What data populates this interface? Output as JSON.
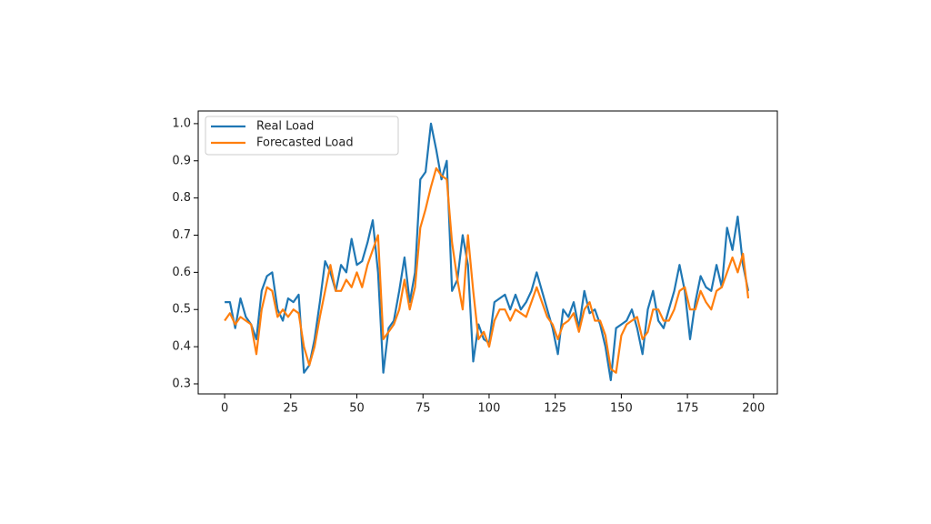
{
  "chart_data": {
    "type": "line",
    "x": [
      0,
      2,
      4,
      6,
      8,
      10,
      12,
      14,
      16,
      18,
      20,
      22,
      24,
      26,
      28,
      30,
      32,
      34,
      36,
      38,
      40,
      42,
      44,
      46,
      48,
      50,
      52,
      54,
      56,
      58,
      60,
      62,
      64,
      66,
      68,
      70,
      72,
      74,
      76,
      78,
      80,
      82,
      84,
      86,
      88,
      90,
      92,
      94,
      96,
      98,
      100,
      102,
      104,
      106,
      108,
      110,
      112,
      114,
      116,
      118,
      120,
      122,
      124,
      126,
      128,
      130,
      132,
      134,
      136,
      138,
      140,
      142,
      144,
      146,
      148,
      150,
      152,
      154,
      156,
      158,
      160,
      162,
      164,
      166,
      168,
      170,
      172,
      174,
      176,
      178,
      180,
      182,
      184,
      186,
      188,
      190,
      192,
      194,
      196,
      198
    ],
    "series": [
      {
        "name": "Real Load",
        "color": "#1f77b4",
        "values": [
          0.52,
          0.52,
          0.45,
          0.53,
          0.48,
          0.46,
          0.42,
          0.55,
          0.59,
          0.6,
          0.5,
          0.47,
          0.53,
          0.52,
          0.54,
          0.33,
          0.35,
          0.42,
          0.52,
          0.63,
          0.6,
          0.55,
          0.62,
          0.6,
          0.69,
          0.62,
          0.63,
          0.68,
          0.74,
          0.6,
          0.33,
          0.45,
          0.47,
          0.55,
          0.64,
          0.52,
          0.6,
          0.85,
          0.87,
          1.0,
          0.93,
          0.85,
          0.9,
          0.55,
          0.58,
          0.7,
          0.62,
          0.36,
          0.46,
          0.42,
          0.41,
          0.52,
          0.53,
          0.54,
          0.5,
          0.54,
          0.5,
          0.52,
          0.55,
          0.6,
          0.55,
          0.5,
          0.45,
          0.38,
          0.5,
          0.48,
          0.52,
          0.45,
          0.55,
          0.49,
          0.5,
          0.46,
          0.4,
          0.31,
          0.45,
          0.46,
          0.47,
          0.5,
          0.45,
          0.38,
          0.5,
          0.55,
          0.47,
          0.45,
          0.5,
          0.55,
          0.62,
          0.55,
          0.42,
          0.52,
          0.59,
          0.56,
          0.55,
          0.62,
          0.56,
          0.72,
          0.66,
          0.75,
          0.62,
          0.55
        ]
      },
      {
        "name": "Forecasted Load",
        "color": "#ff7f0e",
        "values": [
          0.47,
          0.49,
          0.46,
          0.48,
          0.47,
          0.46,
          0.38,
          0.5,
          0.56,
          0.55,
          0.48,
          0.5,
          0.48,
          0.5,
          0.49,
          0.4,
          0.35,
          0.4,
          0.48,
          0.55,
          0.62,
          0.55,
          0.55,
          0.58,
          0.56,
          0.6,
          0.56,
          0.62,
          0.66,
          0.7,
          0.42,
          0.44,
          0.46,
          0.5,
          0.58,
          0.5,
          0.56,
          0.72,
          0.77,
          0.83,
          0.88,
          0.86,
          0.85,
          0.68,
          0.58,
          0.5,
          0.7,
          0.55,
          0.42,
          0.44,
          0.4,
          0.47,
          0.5,
          0.5,
          0.47,
          0.5,
          0.49,
          0.48,
          0.52,
          0.56,
          0.52,
          0.48,
          0.46,
          0.42,
          0.46,
          0.47,
          0.49,
          0.44,
          0.5,
          0.52,
          0.47,
          0.47,
          0.43,
          0.34,
          0.33,
          0.43,
          0.46,
          0.47,
          0.48,
          0.42,
          0.44,
          0.5,
          0.5,
          0.47,
          0.47,
          0.5,
          0.55,
          0.56,
          0.5,
          0.5,
          0.55,
          0.52,
          0.5,
          0.55,
          0.56,
          0.6,
          0.64,
          0.6,
          0.65,
          0.53
        ]
      }
    ],
    "xlim": [
      -10,
      209
    ],
    "xticks": [
      0,
      25,
      50,
      75,
      100,
      125,
      150,
      175,
      200
    ],
    "ylim": [
      0.273,
      1.034
    ],
    "yticks": [
      0.3,
      0.4,
      0.5,
      0.6,
      0.7,
      0.8,
      0.9,
      {
        "value": 1,
        "label": "1.0"
      }
    ],
    "legend": "upper-left",
    "grid": false
  }
}
